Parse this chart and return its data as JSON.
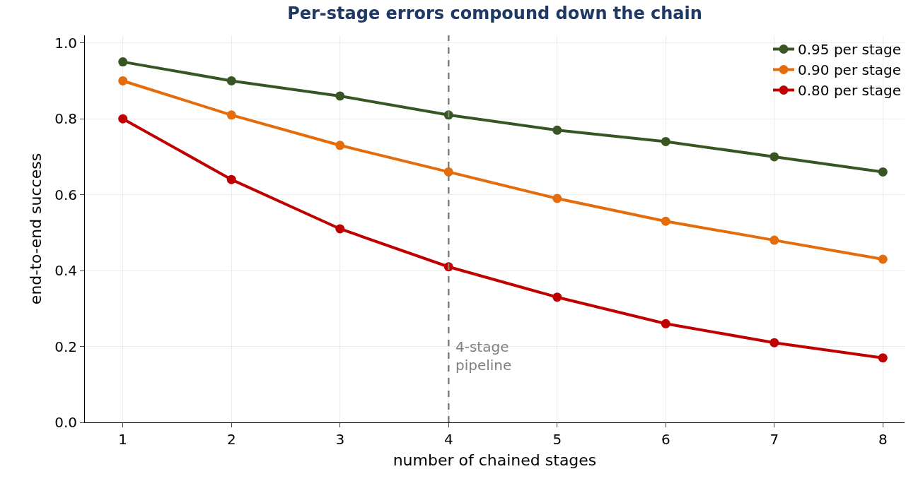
{
  "chart_data": {
    "type": "line",
    "title": "Per-stage errors compound down the chain",
    "xlabel": "number of chained stages",
    "ylabel": "end-to-end success",
    "x": [
      1,
      2,
      3,
      4,
      5,
      6,
      7,
      8
    ],
    "series": [
      {
        "name": "0.95 per stage",
        "color": "#375623",
        "values": [
          0.95,
          0.9,
          0.86,
          0.81,
          0.77,
          0.74,
          0.7,
          0.66
        ]
      },
      {
        "name": "0.90 per stage",
        "color": "#e46c0a",
        "values": [
          0.9,
          0.81,
          0.73,
          0.66,
          0.59,
          0.53,
          0.48,
          0.43
        ]
      },
      {
        "name": "0.80 per stage",
        "color": "#c00000",
        "values": [
          0.8,
          0.64,
          0.51,
          0.41,
          0.33,
          0.26,
          0.21,
          0.17
        ]
      }
    ],
    "xlim": [
      0.65,
      8.2
    ],
    "xticks": [
      1,
      2,
      3,
      4,
      5,
      6,
      7,
      8
    ],
    "ylim": [
      0,
      1.02
    ],
    "yticks": [
      {
        "value": 0,
        "label": "0.0"
      },
      {
        "value": 0.2,
        "label": "0.2"
      },
      {
        "value": 0.4,
        "label": "0.4"
      },
      {
        "value": 0.6,
        "label": "0.6"
      },
      {
        "value": 0.8,
        "label": "0.8"
      },
      {
        "value": 1,
        "label": "1.0"
      }
    ],
    "ref_lines": [
      {
        "axis": "x",
        "value": 4,
        "label": "4-stage\npipeline",
        "color": "#808080",
        "line_style": "dashed"
      }
    ],
    "grid": true,
    "legend": "top right",
    "marker": "circle",
    "line_style": "solid"
  }
}
